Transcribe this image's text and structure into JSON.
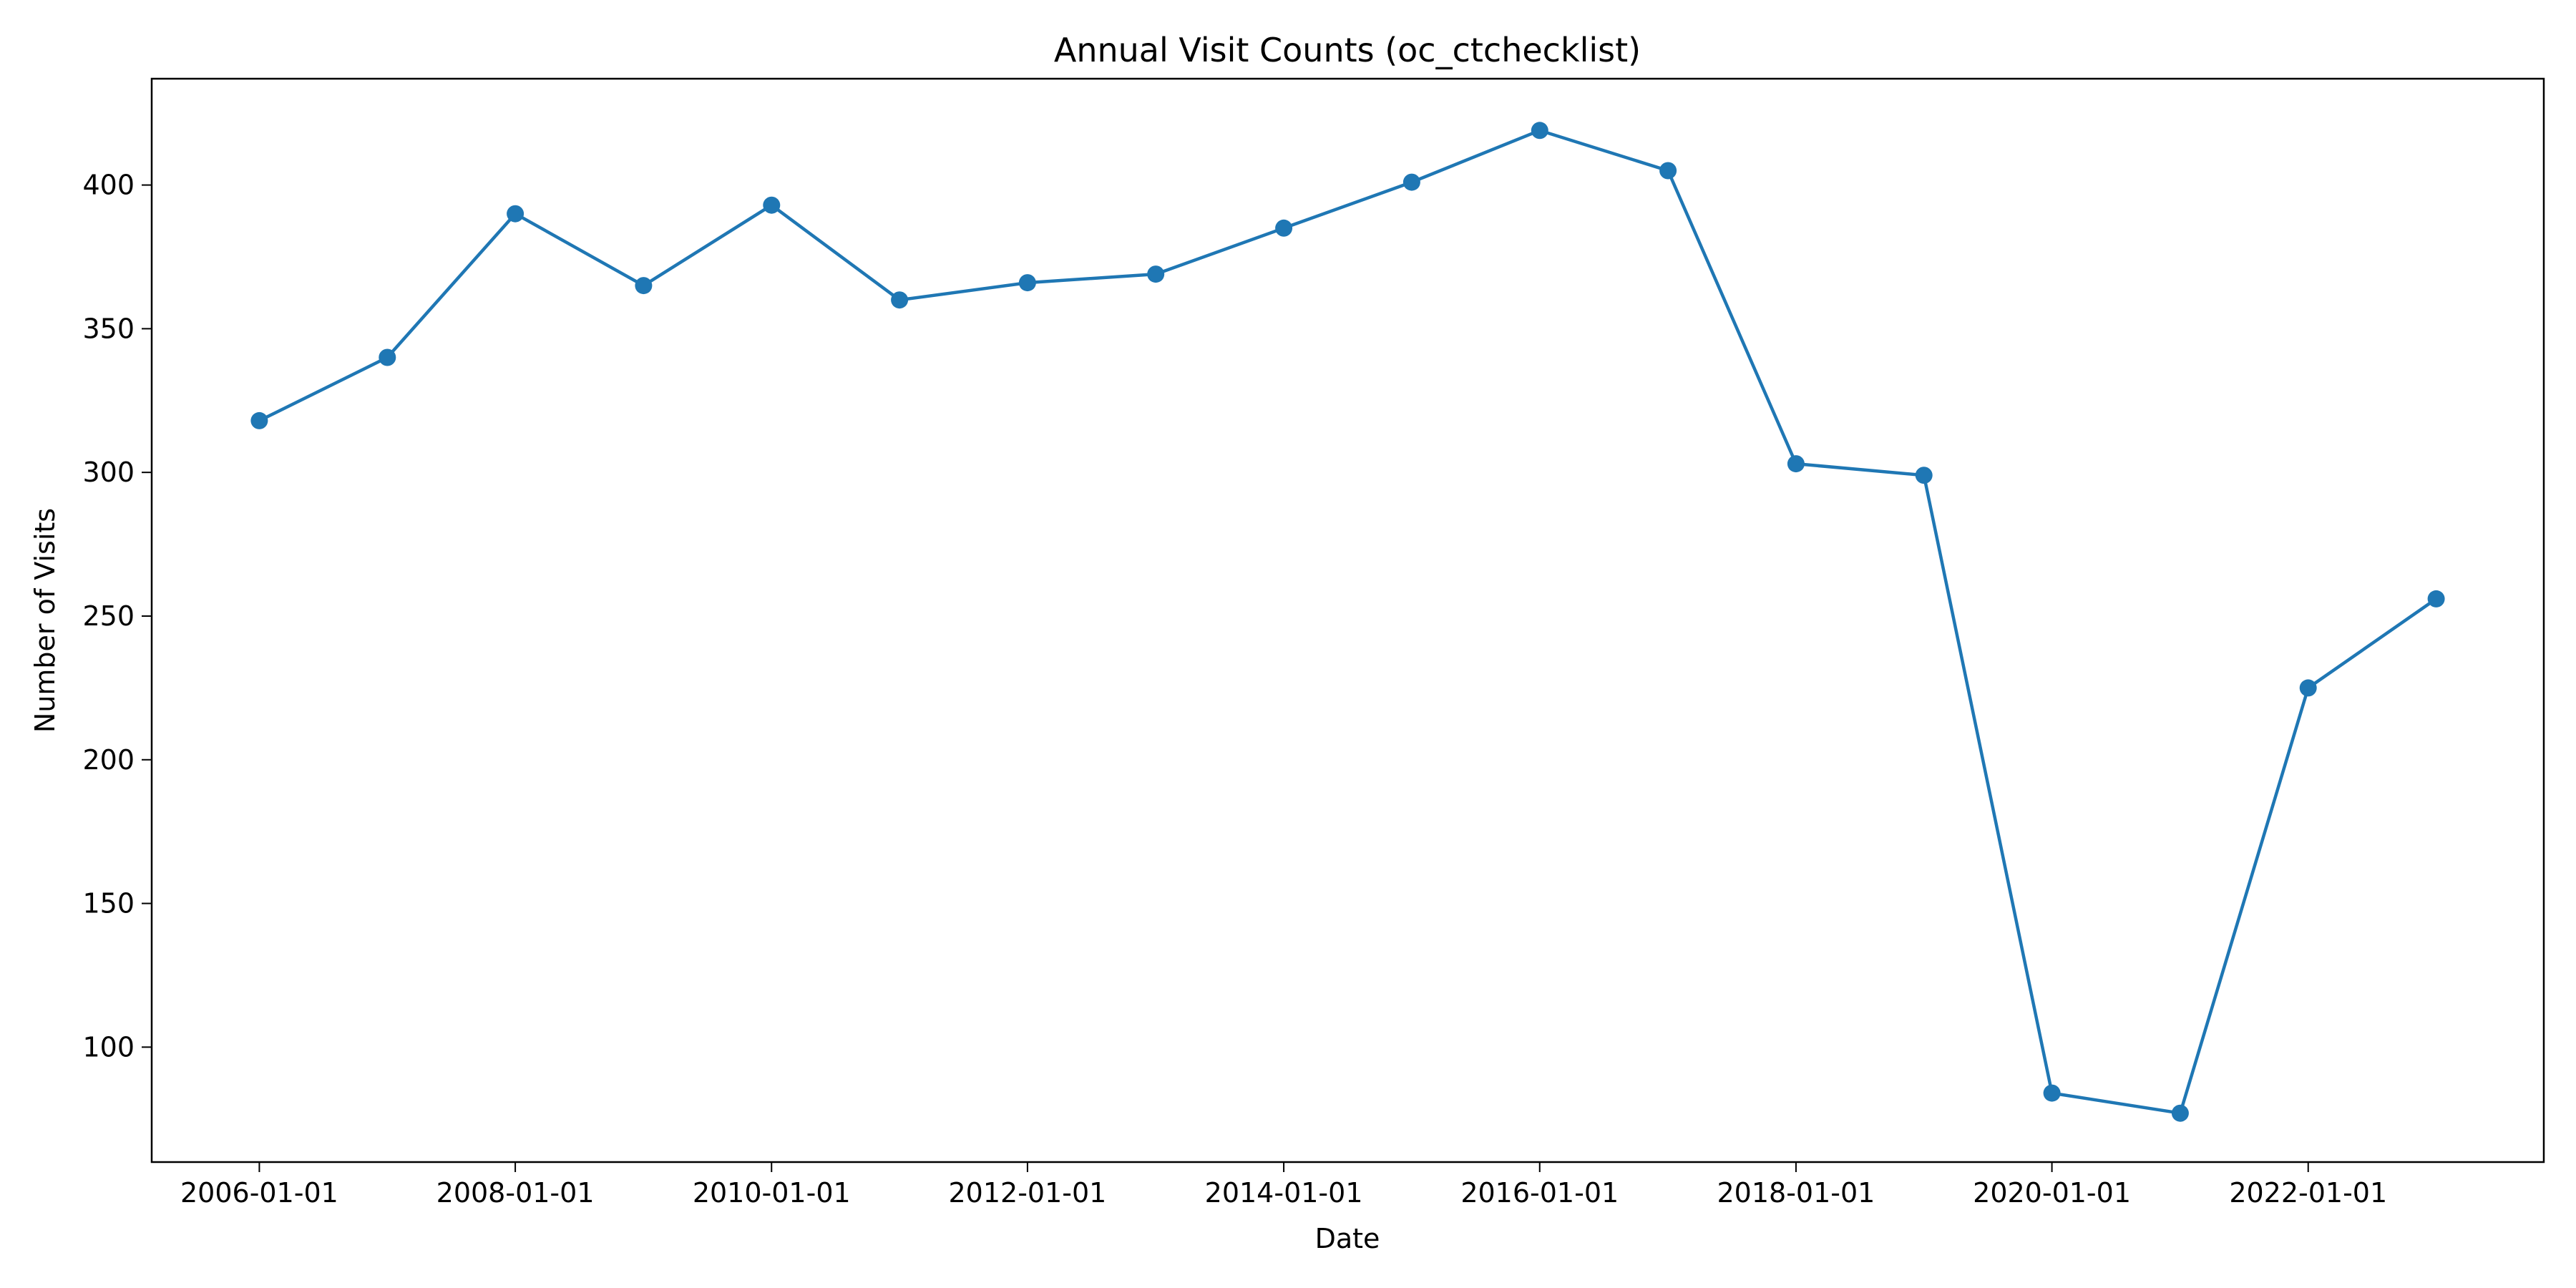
{
  "chart_data": {
    "type": "line",
    "title": "Annual Visit Counts (oc_ctchecklist)",
    "xlabel": "Date",
    "ylabel": "Number of Visits",
    "x": [
      "2006-01-01",
      "2007-01-01",
      "2008-01-01",
      "2009-01-01",
      "2010-01-01",
      "2011-01-01",
      "2012-01-01",
      "2013-01-01",
      "2014-01-01",
      "2015-01-01",
      "2016-01-01",
      "2017-01-01",
      "2018-01-01",
      "2019-01-01",
      "2020-01-01",
      "2021-01-01",
      "2022-01-01",
      "2023-01-01"
    ],
    "series": [
      {
        "values": [
          318,
          340,
          390,
          365,
          393,
          360,
          366,
          369,
          385,
          401,
          419,
          405,
          303,
          299,
          84,
          77,
          225,
          256
        ],
        "color": "#1f77b4",
        "marker": "circle"
      }
    ],
    "xticks": [
      "2006-01-01",
      "2008-01-01",
      "2010-01-01",
      "2012-01-01",
      "2014-01-01",
      "2016-01-01",
      "2018-01-01",
      "2020-01-01",
      "2022-01-01"
    ],
    "yticks": [
      100,
      150,
      200,
      250,
      300,
      350,
      400
    ],
    "xlim": [
      "2005-02-28",
      "2023-11-04"
    ],
    "ylim": [
      60,
      437
    ],
    "grid": false,
    "legend": "none"
  }
}
